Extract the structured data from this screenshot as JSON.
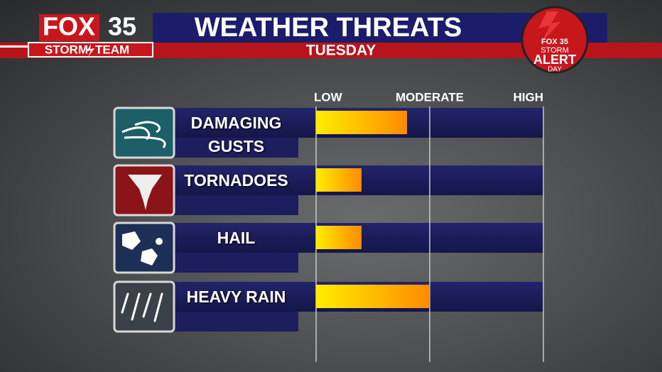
{
  "branding": {
    "station": "FOX",
    "channel": "35",
    "team_left": "STORM",
    "team_right": "TEAM",
    "badge_station": "FOX 35",
    "badge_line1": "STORM",
    "badge_line2": "ALERT",
    "badge_line3": "DAY"
  },
  "chart_data": {
    "type": "bar",
    "orientation": "horizontal",
    "title": "WEATHER THREATS",
    "subtitle": "TUESDAY",
    "categories": [
      "DAMAGING GUSTS",
      "TORNADOES",
      "HAIL",
      "HEAVY RAIN"
    ],
    "values": [
      0.8,
      0.4,
      0.4,
      1.0
    ],
    "color_start": "#ffee00",
    "color_end": "#ff8a00",
    "xlim": [
      0,
      2
    ],
    "xticks": [
      {
        "value": 0,
        "label": "LOW"
      },
      {
        "value": 1,
        "label": "MODERATE"
      },
      {
        "value": 2,
        "label": "HIGH"
      }
    ],
    "grid": true
  }
}
